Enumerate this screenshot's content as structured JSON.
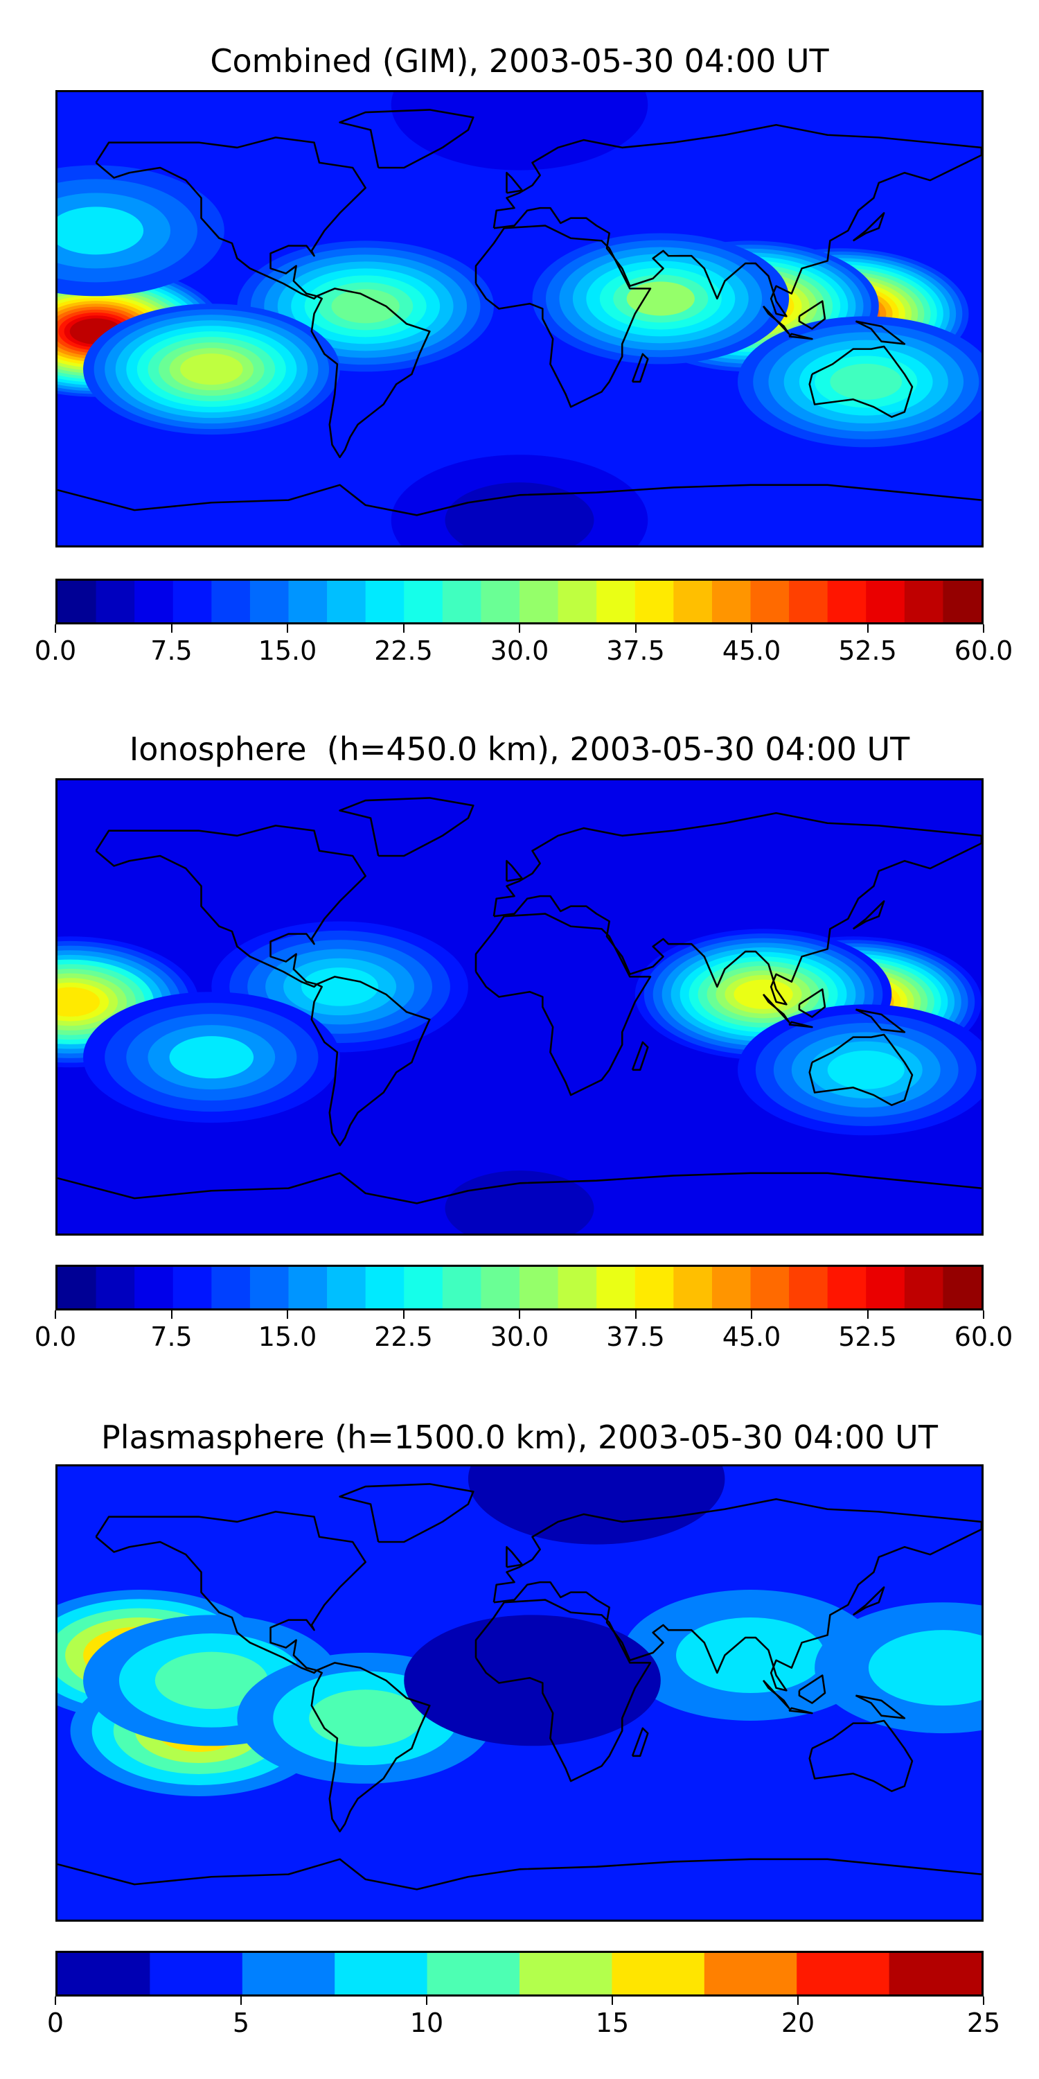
{
  "chart_data": [
    {
      "type": "heatmap",
      "title": "Combined (GIM), 2003-05-30 04:00 UT",
      "colormap": "jet",
      "colorbar": {
        "min": 0,
        "max": 60,
        "levels": 24,
        "ticks": [
          0,
          7.5,
          15,
          22.5,
          30,
          37.5,
          45,
          52.5,
          60
        ],
        "tick_labels": [
          "0.0",
          "7.5",
          "15.0",
          "22.5",
          "30.0",
          "37.5",
          "45.0",
          "52.5",
          "60.0"
        ]
      },
      "background_value": 9,
      "features": [
        {
          "region": "central Pacific (equatorial)",
          "lon": -165,
          "lat": -5,
          "value": 56
        },
        {
          "region": "Indonesia / western Pacific",
          "lon": 125,
          "lat": 2,
          "value": 52
        },
        {
          "region": "Indian Ocean / southern Asia",
          "lon": 90,
          "lat": 5,
          "value": 45
        },
        {
          "region": "northern South America",
          "lon": -60,
          "lat": 5,
          "value": 28
        },
        {
          "region": "southern tropical Pacific",
          "lon": -120,
          "lat": -20,
          "value": 33
        },
        {
          "region": "east Africa / Arabian Sea",
          "lon": 55,
          "lat": 8,
          "value": 30
        },
        {
          "region": "Australia",
          "lon": 135,
          "lat": -25,
          "value": 26
        },
        {
          "region": "north Pacific",
          "lon": -165,
          "lat": 35,
          "value": 20
        },
        {
          "region": "Antarctica",
          "lon": 0,
          "lat": -80,
          "value": 4
        },
        {
          "region": "Arctic",
          "lon": 0,
          "lat": 85,
          "value": 6
        }
      ]
    },
    {
      "type": "heatmap",
      "title": "Ionosphere  (h=450.0 km), 2003-05-30 04:00 UT",
      "colormap": "jet",
      "colorbar": {
        "min": 0,
        "max": 60,
        "levels": 24,
        "ticks": [
          0,
          7.5,
          15,
          22.5,
          30,
          37.5,
          45,
          52.5,
          60
        ],
        "tick_labels": [
          "0.0",
          "7.5",
          "15.0",
          "22.5",
          "30.0",
          "37.5",
          "45.0",
          "52.5",
          "60.0"
        ]
      },
      "background_value": 7,
      "features": [
        {
          "region": "Indonesia / western Pacific",
          "lon": 130,
          "lat": 2,
          "value": 47
        },
        {
          "region": "Indian Ocean / southern Asia",
          "lon": 95,
          "lat": 5,
          "value": 36
        },
        {
          "region": "central Pacific (equatorial)",
          "lon": -175,
          "lat": 2,
          "value": 38
        },
        {
          "region": "northern South America",
          "lon": -70,
          "lat": 8,
          "value": 22
        },
        {
          "region": "southern tropical Pacific",
          "lon": -120,
          "lat": -20,
          "value": 20
        },
        {
          "region": "Australia",
          "lon": 135,
          "lat": -25,
          "value": 22
        },
        {
          "region": "Antarctica",
          "lon": 0,
          "lat": -80,
          "value": 3
        }
      ]
    },
    {
      "type": "heatmap",
      "title": "Plasmasphere (h=1500.0 km), 2003-05-30 04:00 UT",
      "colormap": "jet",
      "colorbar": {
        "min": 0,
        "max": 25,
        "levels": 10,
        "ticks": [
          0,
          5,
          10,
          15,
          20,
          25
        ],
        "tick_labels": [
          "0",
          "5",
          "10",
          "15",
          "20",
          "25"
        ]
      },
      "background_value": 4,
      "features": [
        {
          "region": "north-east Pacific",
          "lon": -148,
          "lat": 15,
          "value": 19
        },
        {
          "region": "south-east Pacific",
          "lon": -125,
          "lat": -15,
          "value": 16
        },
        {
          "region": "tropical Pacific",
          "lon": -120,
          "lat": 5,
          "value": 12
        },
        {
          "region": "South America",
          "lon": -60,
          "lat": -10,
          "value": 12
        },
        {
          "region": "Bay of Bengal",
          "lon": 90,
          "lat": 15,
          "value": 9
        },
        {
          "region": "western Pacific",
          "lon": 165,
          "lat": 10,
          "value": 9
        },
        {
          "region": "Africa / Atlantic",
          "lon": 5,
          "lat": 5,
          "value": 2
        },
        {
          "region": "Arctic",
          "lon": 30,
          "lat": 85,
          "value": 2
        }
      ]
    }
  ]
}
